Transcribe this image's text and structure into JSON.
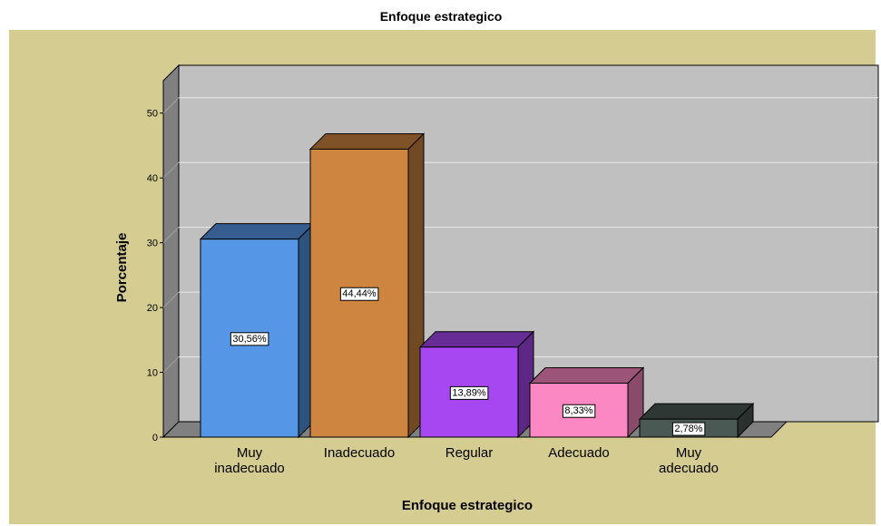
{
  "chart_data": {
    "type": "bar3d",
    "title": "Enfoque estrategico",
    "x_label": "Enfoque estrategico",
    "y_label": "Porcentaje",
    "categories": [
      "Muy inadecuado",
      "Inadecuado",
      "Regular",
      "Adecuado",
      "Muy adecuado"
    ],
    "values": [
      30.56,
      44.44,
      13.89,
      8.33,
      2.78
    ],
    "value_labels": [
      "30,56%",
      "44,44%",
      "13,89%",
      "8,33%",
      "2,78%"
    ],
    "colors": [
      "#5596e6",
      "#cd853f",
      "#a747f2",
      "#fb88c2",
      "#4a5953"
    ],
    "ylim": [
      0,
      55
    ],
    "yticks": [
      0,
      10,
      20,
      30,
      40,
      50
    ],
    "grid": true
  }
}
